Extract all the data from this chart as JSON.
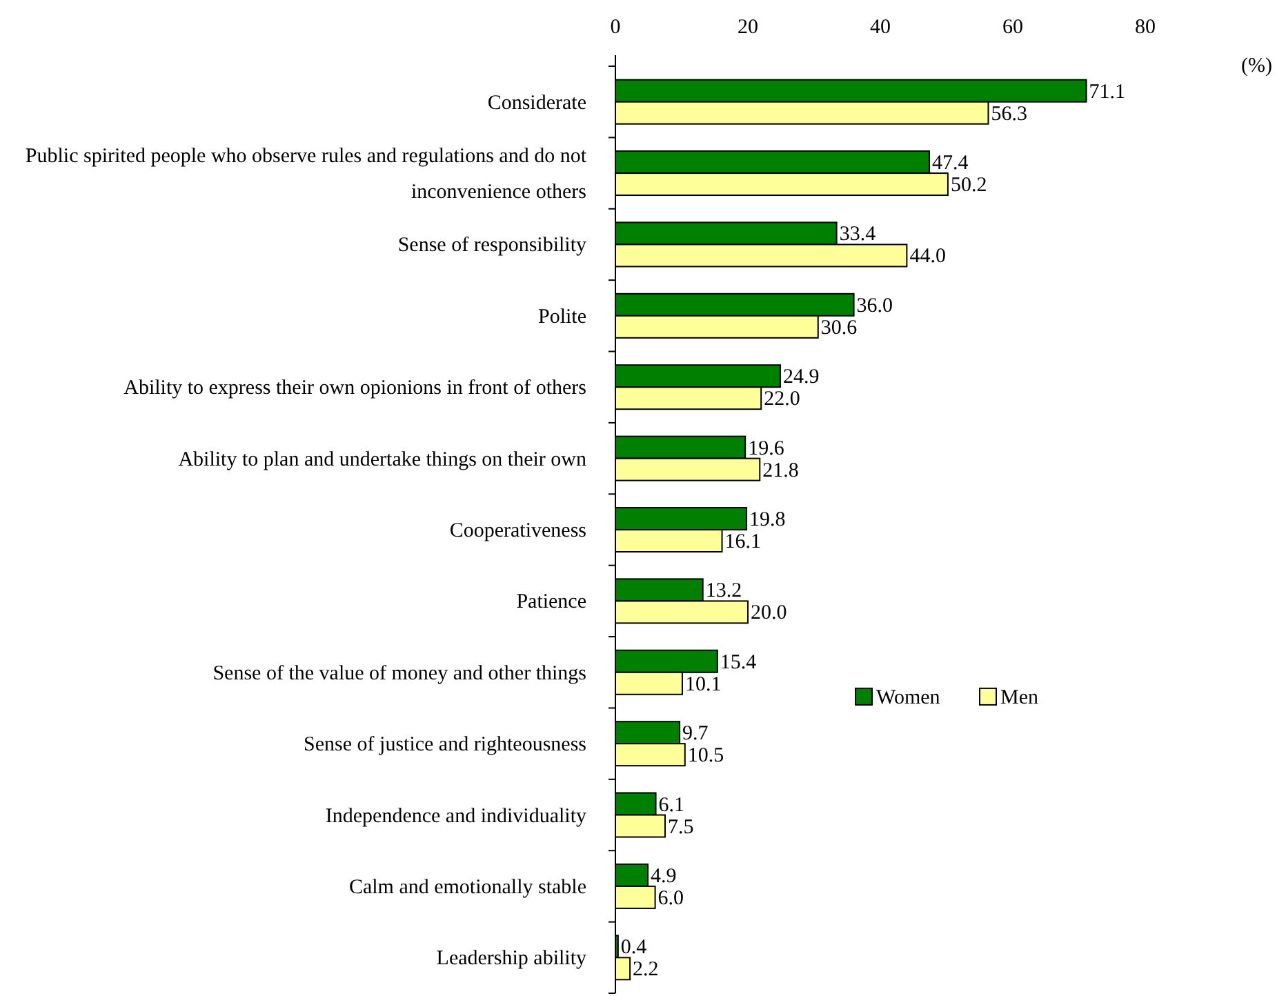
{
  "chart_data": {
    "type": "bar",
    "orientation": "horizontal",
    "xlabel": "(%)",
    "categories": [
      "Considerate",
      "Public spirited people who observe rules and regulations and do not inconvenience others",
      "Sense of responsibility",
      "Polite",
      "Ability to express their own opionions in front of others",
      "Ability to plan and undertake things on their own",
      "Cooperativeness",
      "Patience",
      "Sense of the value of money and other things",
      "Sense of justice and righteousness",
      "Independence and individuality",
      "Calm and emotionally stable",
      "Leadership ability"
    ],
    "series": [
      {
        "name": "Women",
        "color": "#008000",
        "values": [
          71.1,
          47.4,
          33.4,
          36.0,
          24.9,
          19.6,
          19.8,
          13.2,
          15.4,
          9.7,
          6.1,
          4.9,
          0.4
        ],
        "value_labels": [
          "71.1",
          "47.4",
          "33.4",
          "36.0",
          "24.9",
          "19.6",
          "19.8",
          "13.2",
          "15.4",
          "9.7",
          "6.1",
          "4.9",
          "0.4"
        ]
      },
      {
        "name": "Men",
        "color": "#ffff99",
        "values": [
          56.3,
          50.2,
          44.0,
          30.6,
          22.0,
          21.8,
          16.1,
          20.0,
          10.1,
          10.5,
          7.5,
          6.0,
          2.2
        ],
        "value_labels": [
          "56.3",
          "50.2",
          "44.0",
          "30.6",
          "22.0",
          "21.8",
          "16.1",
          "20.0",
          "10.1",
          "10.5",
          "7.5",
          "6.0",
          "2.2"
        ]
      }
    ],
    "xlim": [
      0,
      80
    ],
    "xticks": [
      0,
      20,
      40,
      60,
      80
    ],
    "legend": "right"
  }
}
